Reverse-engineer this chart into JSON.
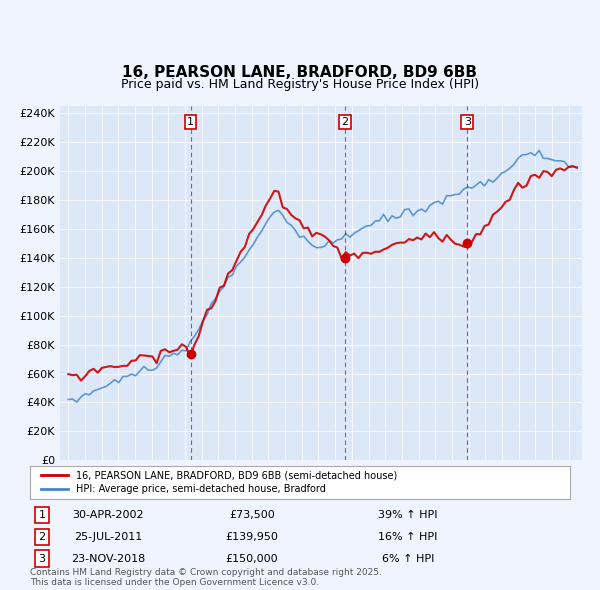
{
  "title": "16, PEARSON LANE, BRADFORD, BD9 6BB",
  "subtitle": "Price paid vs. HM Land Registry's House Price Index (HPI)",
  "title_fontsize": 11,
  "subtitle_fontsize": 9,
  "background_color": "#f0f4ff",
  "plot_bg_color": "#dce8f8",
  "ylabel_ticks": [
    "£0",
    "£20K",
    "£40K",
    "£60K",
    "£80K",
    "£100K",
    "£120K",
    "£140K",
    "£160K",
    "£180K",
    "£200K",
    "£220K",
    "£240K"
  ],
  "ytick_values": [
    0,
    20000,
    40000,
    60000,
    80000,
    100000,
    120000,
    140000,
    160000,
    180000,
    200000,
    220000,
    240000
  ],
  "ylim": [
    0,
    245000
  ],
  "sale_prices": [
    73500,
    139950,
    150000
  ],
  "sale_labels": [
    "1",
    "2",
    "3"
  ],
  "sale_pct": [
    "39% ↑ HPI",
    "16% ↑ HPI",
    "6% ↑ HPI"
  ],
  "sale_date_labels": [
    "30-APR-2002",
    "25-JUL-2011",
    "23-NOV-2018"
  ],
  "legend_house": "16, PEARSON LANE, BRADFORD, BD9 6BB (semi-detached house)",
  "legend_hpi": "HPI: Average price, semi-detached house, Bradford",
  "footer": "Contains HM Land Registry data © Crown copyright and database right 2025.\nThis data is licensed under the Open Government Licence v3.0.",
  "line_color_house": "#cc0000",
  "line_color_hpi": "#4488cc",
  "vline_color": "#cc0000",
  "marker_color_house": "#cc0000",
  "x_start_year": 1995,
  "x_end_year": 2025
}
